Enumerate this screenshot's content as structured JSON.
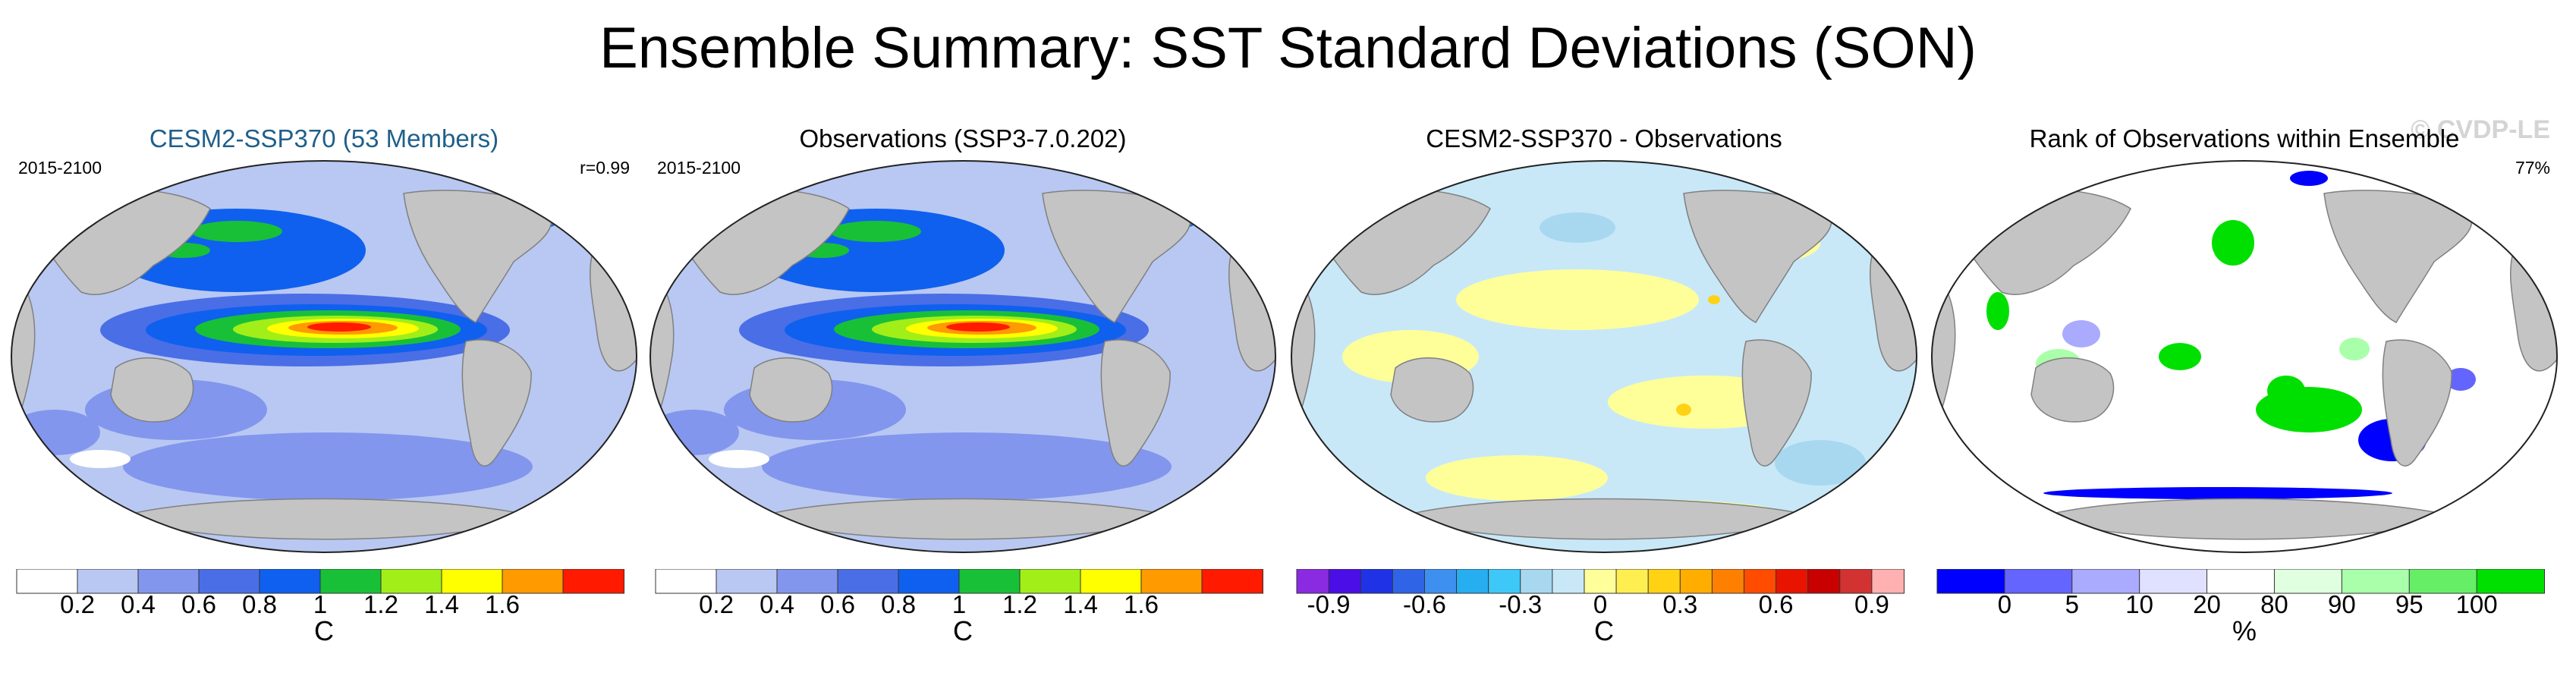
{
  "page_title": "Ensemble Summary: SST Standard Deviations (SON)",
  "watermark": "© CVDP-LE",
  "colors": {
    "ocean_base_blue": "#b8c8f2",
    "land": "#c4c4c4",
    "sd_scale": [
      "#ffffff",
      "#b8c8f2",
      "#8296ee",
      "#4a6ee6",
      "#0f60ee",
      "#18c038",
      "#a2ee18",
      "#ffff00",
      "#ff9a00",
      "#ff1a00"
    ],
    "diff_scale": [
      "#8a2be2",
      "#4b0ee6",
      "#2032e6",
      "#3064e6",
      "#3e90f0",
      "#26aef0",
      "#3ec8f8",
      "#a8d8f0",
      "#c8e8f8",
      "#ffff9a",
      "#ffee50",
      "#ffd214",
      "#ffae00",
      "#ff8000",
      "#ff4c00",
      "#e81400",
      "#c80000",
      "#d23232",
      "#ffb0b0"
    ],
    "rank_scale": [
      "#0000ff",
      "#6464ff",
      "#aaaaff",
      "#e0e0ff",
      "#ffffff",
      "#e0ffe0",
      "#aaffaa",
      "#66ee66",
      "#00e000"
    ]
  },
  "panels": [
    {
      "title": "CESM2-SSP370 (53 Members)",
      "period": "2015-2100",
      "stat": "r=0.99",
      "kind": "sd",
      "colorbar": {
        "ticks": [
          "0.2",
          "0.4",
          "0.6",
          "0.8",
          "1",
          "1.2",
          "1.4",
          "1.6"
        ],
        "unit": "C"
      }
    },
    {
      "title": "Observations (SSP3-7.0.202)",
      "period": "2015-2100",
      "stat": "",
      "kind": "sd",
      "colorbar": {
        "ticks": [
          "0.2",
          "0.4",
          "0.6",
          "0.8",
          "1",
          "1.2",
          "1.4",
          "1.6"
        ],
        "unit": "C"
      }
    },
    {
      "title": "CESM2-SSP370 - Observations",
      "period": "",
      "stat": "",
      "kind": "diff",
      "colorbar": {
        "ticks": [
          "-0.9",
          "-0.6",
          "-0.3",
          "0",
          "0.3",
          "0.6",
          "0.9"
        ],
        "unit": "C"
      }
    },
    {
      "title": "Rank of Observations within Ensemble",
      "period": "",
      "stat": "77%",
      "kind": "rank",
      "colorbar": {
        "ticks": [
          "0",
          "5",
          "10",
          "20",
          "80",
          "90",
          "95",
          "100"
        ],
        "unit": "%"
      }
    }
  ],
  "chart_data": {
    "type": "heatmap",
    "title": "Ensemble Summary: SST Standard Deviations (SON)",
    "projection": "global map (Pacific-centred ellipse)",
    "variable": "SST standard deviation, Sep-Oct-Nov",
    "panels": [
      {
        "name": "CESM2-SSP370 (53 Members)",
        "period": "2015-2100",
        "pattern_correlation": 0.99,
        "units": "C",
        "contour_levels": [
          0.2,
          0.4,
          0.6,
          0.8,
          1,
          1.2,
          1.4,
          1.6
        ],
        "features": [
          "equatorial Pacific maximum > 1.6 C",
          "North Pacific 0.8-1.2 C",
          "most ocean 0.2-0.6 C"
        ]
      },
      {
        "name": "Observations (SSP3-7.0.202)",
        "period": "2015-2100",
        "units": "C",
        "contour_levels": [
          0.2,
          0.4,
          0.6,
          0.8,
          1,
          1.2,
          1.4,
          1.6
        ],
        "features": [
          "equatorial Pacific maximum > 1.6 C",
          "North Pacific 0.8-1.2 C"
        ]
      },
      {
        "name": "CESM2-SSP370 - Observations",
        "units": "C",
        "contour_levels": [
          -0.9,
          -0.8,
          -0.7,
          -0.6,
          -0.5,
          -0.4,
          -0.3,
          -0.2,
          -0.1,
          0,
          0.1,
          0.2,
          0.3,
          0.4,
          0.5,
          0.6,
          0.7,
          0.8,
          0.9
        ],
        "features": [
          "differences mostly within -0.1 to 0.1 C"
        ]
      },
      {
        "name": "Rank of Observations within Ensemble",
        "units": "%",
        "summary_stat": "77%",
        "contour_levels": [
          0,
          5,
          10,
          20,
          80,
          90,
          95,
          100
        ],
        "features": [
          "scattered green (>90%) patches",
          "blue (<10%) near Antarctica"
        ]
      }
    ]
  }
}
